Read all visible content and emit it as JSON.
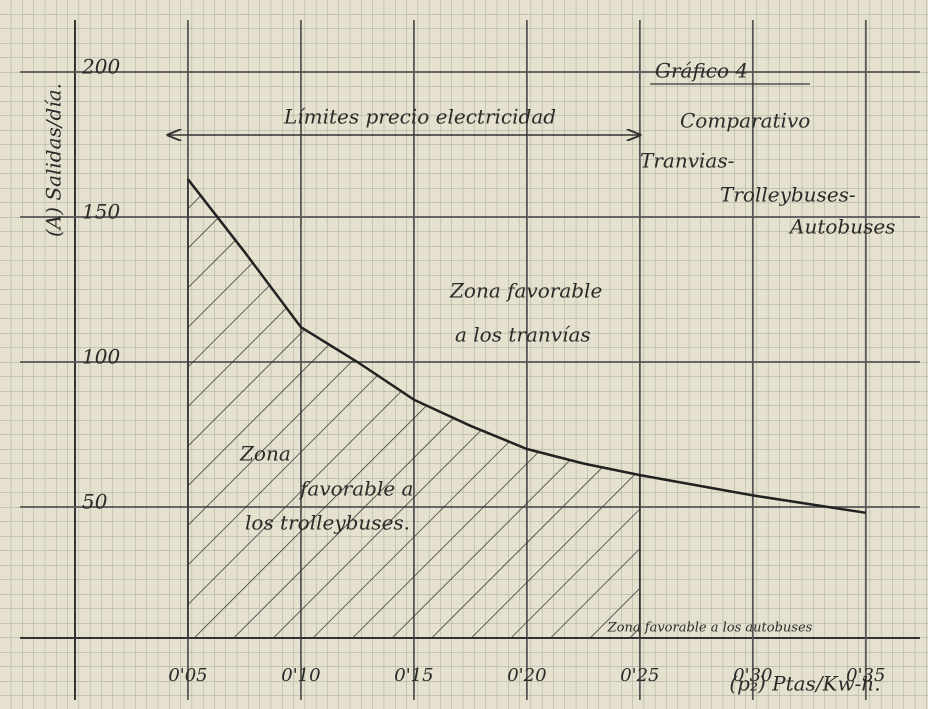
{
  "chart_data": {
    "type": "line",
    "title": "Gráfico 4",
    "subtitle": [
      "Comparativo",
      "Tranvias-",
      "Trolleybuses-",
      "Autobuses"
    ],
    "y_label": "(A) Salidas/día.",
    "x_label": "(p₂) Ptas/Kw-h.",
    "limits_label": "Límites precio electricidad",
    "limits": [
      0.05,
      0.25
    ],
    "annotations": [
      "Zona favorable",
      "a los tranvías",
      "Zona",
      "favorable a",
      "los trolleybuses.",
      "Zona favorable a los autobuses"
    ],
    "x": [
      0.05,
      0.075,
      0.1,
      0.125,
      0.15,
      0.175,
      0.2,
      0.225,
      0.25,
      0.3,
      0.35
    ],
    "values": [
      163,
      138,
      112,
      100,
      87,
      78,
      70,
      65,
      61,
      54,
      48
    ],
    "color": "#222",
    "xlim": [
      0,
      0.37
    ],
    "ylim": [
      0,
      215
    ],
    "xticks": [
      {
        "value": 0.05,
        "label": "0'05"
      },
      {
        "value": 0.1,
        "label": "0'10"
      },
      {
        "value": 0.15,
        "label": "0'15"
      },
      {
        "value": 0.2,
        "label": "0'20"
      },
      {
        "value": 0.25,
        "label": "0'25"
      },
      {
        "value": 0.3,
        "label": "0'30"
      },
      {
        "value": 0.35,
        "label": "0'35"
      }
    ],
    "yticks": [
      50,
      100,
      150,
      200
    ],
    "grid": true
  }
}
